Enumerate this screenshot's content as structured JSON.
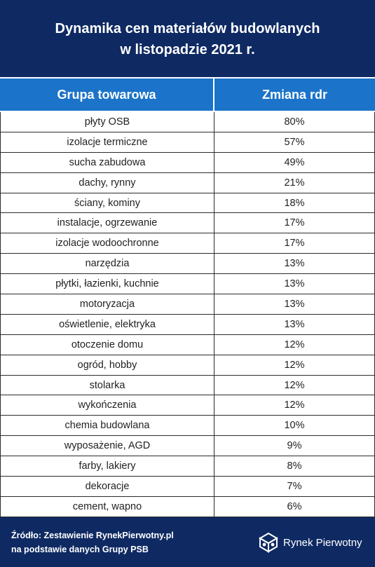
{
  "header": {
    "title_line1": "Dynamika cen materiałów budowlanych",
    "title_line2": "w listopadzie 2021 r."
  },
  "table": {
    "col1_header": "Grupa towarowa",
    "col2_header": "Zmiana rdr"
  },
  "chart_data": {
    "type": "table",
    "title": "Dynamika cen materiałów budowlanych w listopadzie 2021 r.",
    "columns": [
      "Grupa towarowa",
      "Zmiana rdr"
    ],
    "rows": [
      {
        "group": "płyty OSB",
        "change": "80%",
        "value": 80
      },
      {
        "group": "izolacje termiczne",
        "change": "57%",
        "value": 57
      },
      {
        "group": "sucha zabudowa",
        "change": "49%",
        "value": 49
      },
      {
        "group": "dachy, rynny",
        "change": "21%",
        "value": 21
      },
      {
        "group": "ściany, kominy",
        "change": "18%",
        "value": 18
      },
      {
        "group": "instalacje, ogrzewanie",
        "change": "17%",
        "value": 17
      },
      {
        "group": "izolacje wodoochronne",
        "change": "17%",
        "value": 17
      },
      {
        "group": "narzędzia",
        "change": "13%",
        "value": 13
      },
      {
        "group": "płytki, łazienki, kuchnie",
        "change": "13%",
        "value": 13
      },
      {
        "group": "motoryzacja",
        "change": "13%",
        "value": 13
      },
      {
        "group": "oświetlenie, elektryka",
        "change": "13%",
        "value": 13
      },
      {
        "group": "otoczenie domu",
        "change": "12%",
        "value": 12
      },
      {
        "group": "ogród, hobby",
        "change": "12%",
        "value": 12
      },
      {
        "group": "stolarka",
        "change": "12%",
        "value": 12
      },
      {
        "group": "wykończenia",
        "change": "12%",
        "value": 12
      },
      {
        "group": "chemia budowlana",
        "change": "10%",
        "value": 10
      },
      {
        "group": "wyposażenie, AGD",
        "change": "9%",
        "value": 9
      },
      {
        "group": "farby, lakiery",
        "change": "8%",
        "value": 8
      },
      {
        "group": "dekoracje",
        "change": "7%",
        "value": 7
      },
      {
        "group": "cement, wapno",
        "change": "6%",
        "value": 6
      }
    ]
  },
  "footer": {
    "source_line1": "Źródło: Zestawienie RynekPierwotny.pl",
    "source_line2": "na podstawie danych Grupy PSB",
    "logo_text": "Rynek Pierwotny",
    "logo_icon": "cube-logo-icon"
  },
  "colors": {
    "navy": "#0f2a63",
    "header_blue": "#1b74c9",
    "white": "#ffffff"
  }
}
